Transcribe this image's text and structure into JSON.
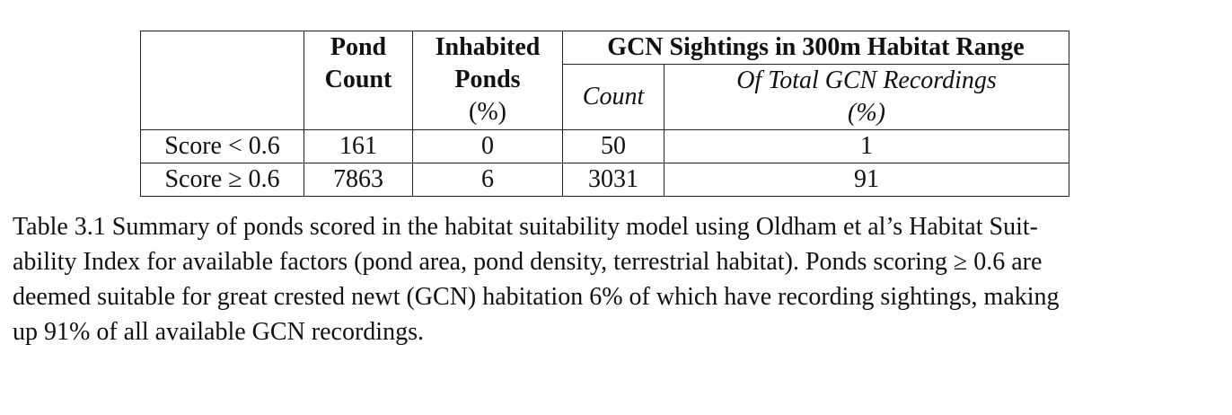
{
  "table": {
    "headers": {
      "pond_count_line1": "Pond",
      "pond_count_line2": "Count",
      "inhabited_line1": "Inhabited",
      "inhabited_line2": "Ponds",
      "inhabited_unit": "(%)",
      "gcn_group": "GCN Sightings in 300m Habitat Range",
      "count": "Count",
      "of_total_line1": "Of Total GCN Recordings",
      "of_total_line2": "(%)"
    },
    "rows": [
      {
        "label": "Score < 0.6",
        "pond_count": "161",
        "inhabited": "0",
        "count": "50",
        "of_total": "1"
      },
      {
        "label": "Score ≥ 0.6",
        "pond_count": "7863",
        "inhabited": "6",
        "count": "3031",
        "of_total": "91"
      }
    ]
  },
  "caption": {
    "lines": [
      "Table 3.1 Summary of ponds scored in the habitat suitability model using Oldham et al’s Habitat Suit-",
      "ability Index for available factors (pond area, pond density, terrestrial habitat). Ponds scoring ≥ 0.6 are",
      "deemed suitable for great crested newt (GCN) habitation 6% of which have recording sightings, making",
      "up 91% of all available GCN recordings."
    ]
  }
}
